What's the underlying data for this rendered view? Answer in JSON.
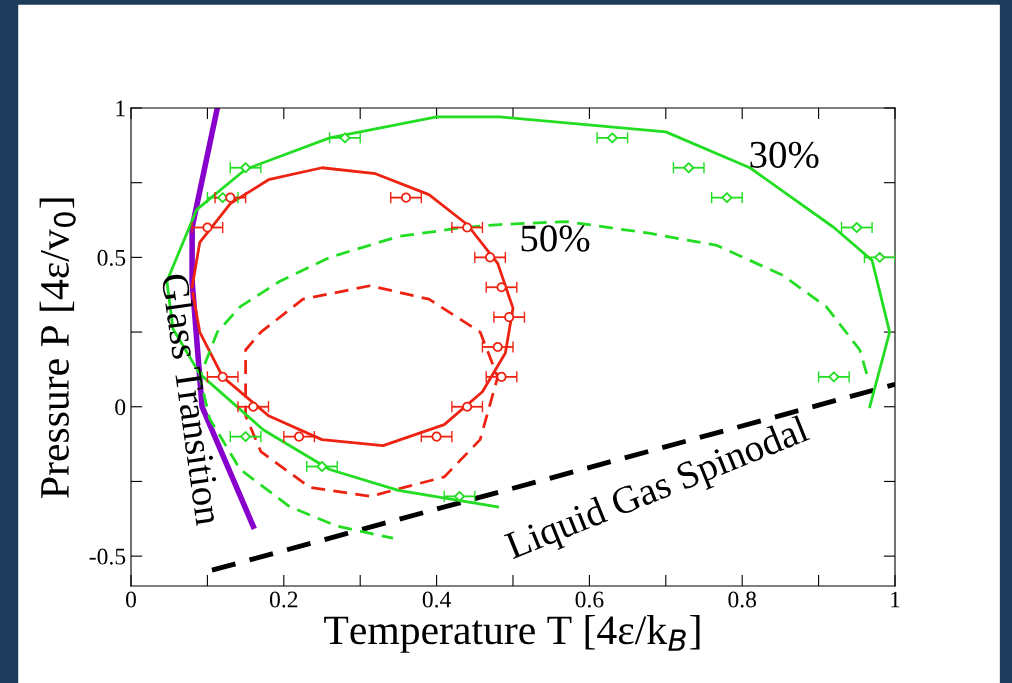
{
  "chart_data": {
    "type": "scatter",
    "xlabel": "Temperature T [4ε/k$_{B}$]",
    "ylabel": "Pressure P [4ε/v$_{0}$]",
    "xlim": [
      0,
      1
    ],
    "ylim": [
      -0.6,
      1
    ],
    "xticks": [
      0,
      {
        "value": 0.1,
        "label": null
      },
      0.2,
      {
        "value": 0.3,
        "label": null
      },
      0.4,
      {
        "value": 0.5,
        "label": null
      },
      0.6,
      {
        "value": 0.7,
        "label": null
      },
      0.8,
      {
        "value": 0.9,
        "label": null
      },
      1
    ],
    "yticks": [
      {
        "value": -0.5,
        "label": "-0.5"
      },
      {
        "value": -0.25,
        "label": null
      },
      0,
      {
        "value": 0.25,
        "label": null
      },
      0.5,
      {
        "value": 0.75,
        "label": null
      },
      1
    ],
    "series": [
      {
        "type": "line",
        "color": "#22dd22",
        "line_style": "solid",
        "x": [
          0.967,
          0.993,
          0.97,
          0.92,
          0.81,
          0.7,
          0.483,
          0.4,
          0.26,
          0.15,
          0.086,
          0.047,
          0.055,
          0.09,
          0.173,
          0.26,
          0.35,
          0.48
        ],
        "values": [
          0.0,
          0.25,
          0.49,
          0.6,
          0.8,
          0.92,
          0.97,
          0.97,
          0.9,
          0.795,
          0.66,
          0.42,
          0.26,
          0.11,
          -0.077,
          -0.21,
          -0.28,
          -0.335
        ]
      },
      {
        "type": "line",
        "color": "#22dd22",
        "line_style": "dashed",
        "x": [
          0.963,
          0.954,
          0.91,
          0.853,
          0.767,
          0.68,
          0.57,
          0.483,
          0.435,
          0.35,
          0.26,
          0.195,
          0.143,
          0.113,
          0.09,
          0.103,
          0.143,
          0.208,
          0.27,
          0.343
        ],
        "values": [
          0.11,
          0.19,
          0.335,
          0.44,
          0.54,
          0.58,
          0.62,
          0.61,
          0.6,
          0.57,
          0.5,
          0.42,
          0.335,
          0.25,
          0.1,
          -0.04,
          -0.21,
          -0.335,
          -0.4,
          -0.44
        ]
      },
      {
        "type": "line",
        "color": "#ee2211",
        "line_style": "solid",
        "x": [
          0.08,
          0.09,
          0.13,
          0.18,
          0.25,
          0.32,
          0.39,
          0.44,
          0.48,
          0.5,
          0.49,
          0.46,
          0.41,
          0.33,
          0.25,
          0.18,
          0.12,
          0.09,
          0.081
        ],
        "values": [
          0.4,
          0.55,
          0.68,
          0.76,
          0.8,
          0.78,
          0.71,
          0.61,
          0.48,
          0.33,
          0.18,
          0.05,
          -0.06,
          -0.13,
          -0.11,
          -0.03,
          0.1,
          0.25,
          0.38
        ]
      },
      {
        "type": "line",
        "color": "#ee2211",
        "line_style": "dashed",
        "x": [
          0.15,
          0.15,
          0.17,
          0.225,
          0.313,
          0.39,
          0.457,
          0.48,
          0.457,
          0.41,
          0.313,
          0.234,
          0.17,
          0.15,
          0.15
        ],
        "values": [
          0.11,
          0.19,
          0.25,
          0.36,
          0.405,
          0.36,
          0.25,
          0.1,
          -0.11,
          -0.235,
          -0.3,
          -0.27,
          -0.15,
          -0.03,
          0.08
        ]
      },
      {
        "type": "line",
        "color": "#8800cc",
        "line_style": "solid",
        "x": [
          0.113,
          0.08,
          0.08,
          0.093,
          0.16
        ],
        "values": [
          1.0,
          0.6,
          0.42,
          0.0,
          -0.4
        ]
      },
      {
        "type": "line",
        "color": "#000000",
        "line_style": "dashed",
        "x": [
          0.106,
          1.0
        ],
        "values": [
          -0.547,
          0.075
        ]
      },
      {
        "color": "#22dd22",
        "marker": "diamond",
        "x": [
          0.28,
          0.63,
          0.73,
          0.15,
          0.78,
          0.12,
          0.95,
          0.98,
          0.92,
          0.15,
          0.25,
          0.43
        ],
        "values": [
          0.9,
          0.9,
          0.8,
          0.8,
          0.7,
          0.7,
          0.6,
          0.5,
          0.1,
          -0.1,
          -0.2,
          -0.3
        ],
        "xerrors": [
          0.02,
          0.02,
          0.02,
          0.02,
          0.02,
          0.02,
          0.02,
          0.02,
          0.02,
          0.02,
          0.02,
          0.02
        ]
      },
      {
        "color": "#ee2211",
        "marker": "circle",
        "x": [
          0.13,
          0.36,
          0.1,
          0.44,
          0.47,
          0.485,
          0.495,
          0.48,
          0.485,
          0.12,
          0.16,
          0.44,
          0.22,
          0.4
        ],
        "values": [
          0.7,
          0.7,
          0.6,
          0.6,
          0.5,
          0.4,
          0.3,
          0.2,
          0.1,
          0.1,
          0,
          0,
          -0.1,
          -0.1
        ],
        "xerrors": [
          0.02,
          0.02,
          0.02,
          0.02,
          0.02,
          0.02,
          0.02,
          0.02,
          0.02,
          0.02,
          0.02,
          0.02,
          0.02,
          0.02
        ]
      }
    ],
    "annotations": [
      "30%",
      "50%",
      "Glass Transition",
      "Liquid Gas Spinodal"
    ]
  }
}
